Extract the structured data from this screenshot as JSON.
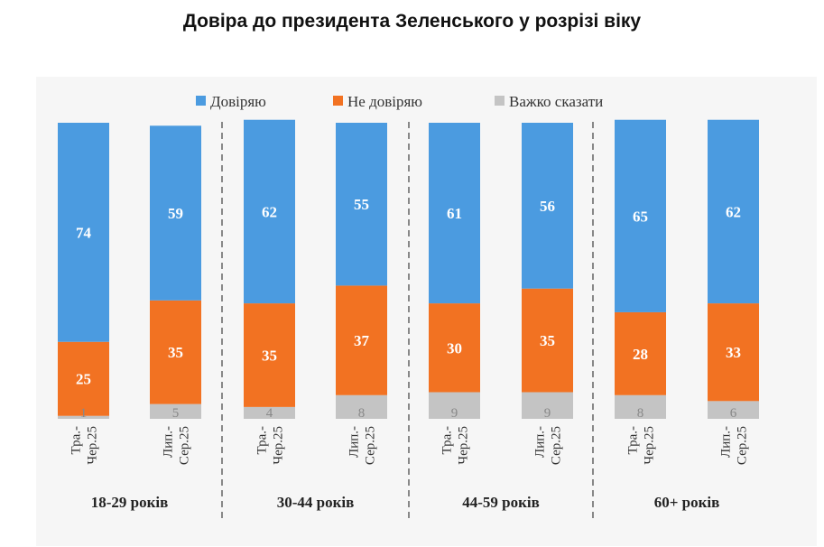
{
  "title": "Довіра до президента Зеленського у розрізі віку",
  "chart_data": {
    "type": "bar",
    "stacked": true,
    "legend_position": "top",
    "colors": {
      "trust": "#4b9be0",
      "distrust": "#f27222",
      "hard": "#c4c4c4",
      "label_light": "#ffffff",
      "label_dark": "#888888",
      "divider": "#888888",
      "text": "#222222"
    },
    "series": [
      {
        "key": "trust",
        "name": "Довіряю"
      },
      {
        "key": "distrust",
        "name": "Не довіряю"
      },
      {
        "key": "hard",
        "name": "Важко сказати"
      }
    ],
    "groups": [
      {
        "label": "18-29 років",
        "bars": [
          {
            "period_line1": "Тра.-",
            "period_line2": "Чер.25",
            "trust": 74,
            "distrust": 25,
            "hard": 1
          },
          {
            "period_line1": "Лип.-",
            "period_line2": "Сер.25",
            "trust": 59,
            "distrust": 35,
            "hard": 5
          }
        ]
      },
      {
        "label": "30-44 років",
        "bars": [
          {
            "period_line1": "Тра.-",
            "period_line2": "Чер.25",
            "trust": 62,
            "distrust": 35,
            "hard": 4
          },
          {
            "period_line1": "Лип.-",
            "period_line2": "Сер.25",
            "trust": 55,
            "distrust": 37,
            "hard": 8
          }
        ]
      },
      {
        "label": "44-59 років",
        "bars": [
          {
            "period_line1": "Тра.-",
            "period_line2": "Чер.25",
            "trust": 61,
            "distrust": 30,
            "hard": 9
          },
          {
            "period_line1": "Лип.-",
            "period_line2": "Сер.25",
            "trust": 56,
            "distrust": 35,
            "hard": 9
          }
        ]
      },
      {
        "label": "60+ років",
        "bars": [
          {
            "period_line1": "Тра.-",
            "period_line2": "Чер.25",
            "trust": 65,
            "distrust": 28,
            "hard": 8
          },
          {
            "period_line1": "Лип.-",
            "period_line2": "Сер.25",
            "trust": 62,
            "distrust": 33,
            "hard": 6
          }
        ]
      }
    ],
    "ylim": [
      0,
      100
    ]
  }
}
